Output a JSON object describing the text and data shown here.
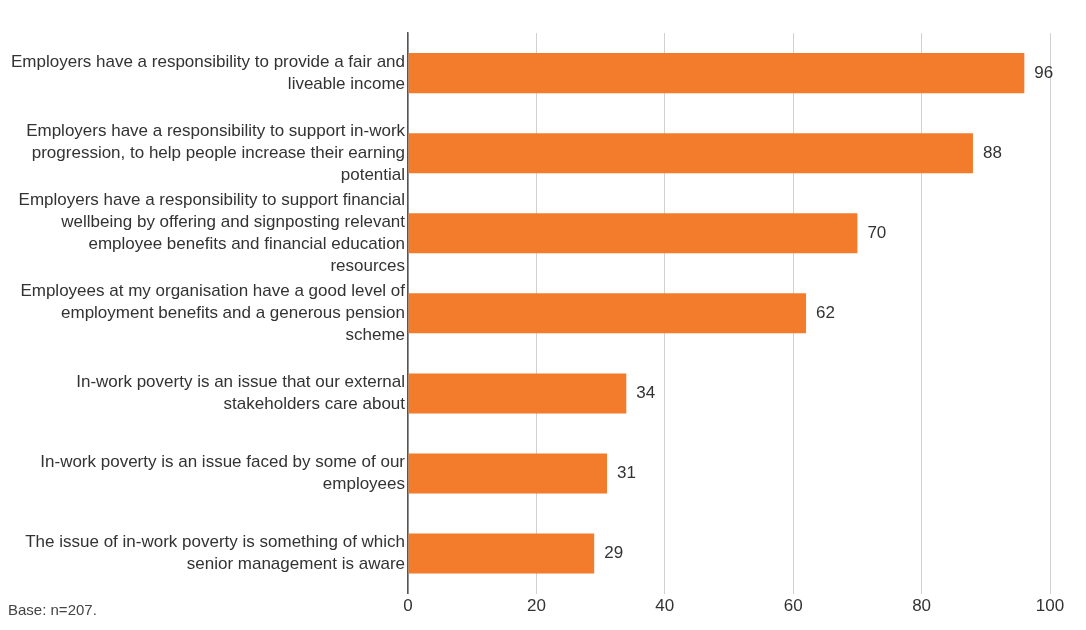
{
  "chart_data": {
    "type": "bar",
    "orientation": "horizontal",
    "categories": [
      "Employers have a responsibility to provide a fair and liveable income",
      "Employers have a responsibility to support in-work progression, to help people increase their earning potential",
      "Employers have a responsibility to support financial wellbeing by offering and signposting relevant employee benefits and financial education resources",
      "Employees at my organisation have a good level of employment benefits and a generous pension scheme",
      "In-work poverty is an issue that our external stakeholders care about",
      "In-work poverty is an issue faced by some of our employees",
      "The issue of in-work poverty is something of which senior management is aware"
    ],
    "values": [
      96,
      88,
      70,
      62,
      34,
      31,
      29
    ],
    "color": "#f27b2c",
    "xlim": [
      0,
      100
    ],
    "xticks": [
      0,
      20,
      40,
      60,
      80,
      100
    ],
    "grid": "x",
    "data_labels": true,
    "legend": false,
    "annotations": [
      "Base: n=207."
    ]
  }
}
